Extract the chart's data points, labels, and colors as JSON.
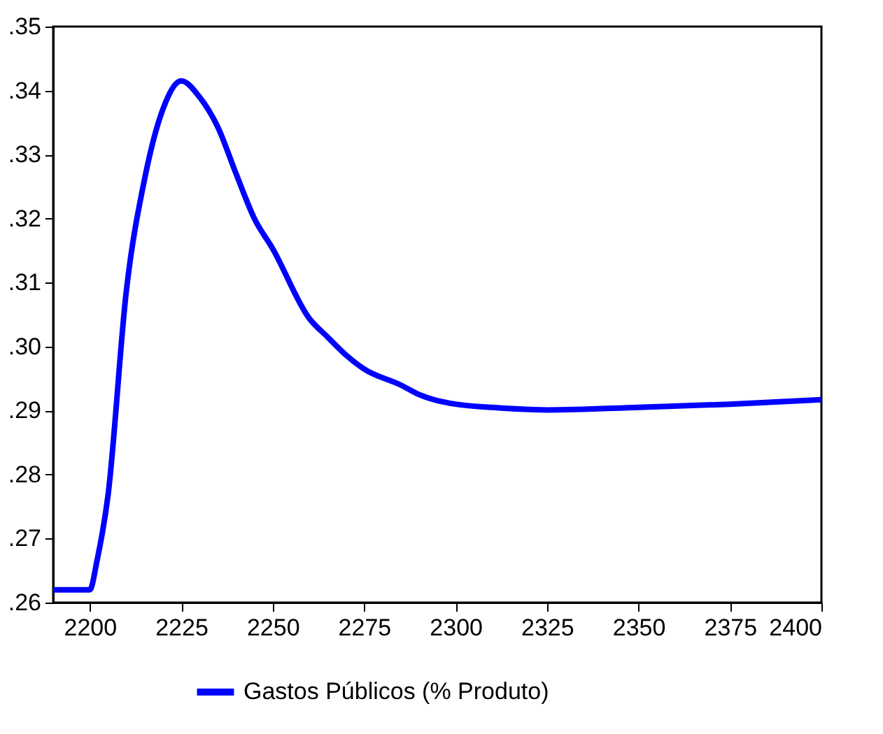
{
  "chart_data": {
    "type": "line",
    "xlim": [
      2190,
      2400
    ],
    "ylim": [
      0.26,
      0.35
    ],
    "xticks": [
      2200,
      2225,
      2250,
      2275,
      2300,
      2325,
      2350,
      2375,
      2400
    ],
    "yticks": [
      {
        "value": 0.26,
        "label": ".26"
      },
      {
        "value": 0.27,
        "label": ".27"
      },
      {
        "value": 0.28,
        "label": ".28"
      },
      {
        "value": 0.29,
        "label": ".29"
      },
      {
        "value": 0.3,
        "label": ".30"
      },
      {
        "value": 0.31,
        "label": ".31"
      },
      {
        "value": 0.32,
        "label": ".32"
      },
      {
        "value": 0.33,
        "label": ".33"
      },
      {
        "value": 0.34,
        "label": ".34"
      },
      {
        "value": 0.35,
        "label": ".35"
      }
    ],
    "x": [
      2190,
      2195,
      2200,
      2202,
      2205,
      2210,
      2215,
      2220,
      2225,
      2230,
      2235,
      2240,
      2245,
      2250,
      2260,
      2265,
      2270,
      2275,
      2285,
      2290,
      2300,
      2310,
      2325,
      2350,
      2375,
      2400
    ],
    "series": [
      {
        "name": "Gastos Públicos (% Produto)",
        "color": "#0000ff",
        "values": [
          0.262,
          0.262,
          0.262,
          0.2666,
          0.2768,
          0.3087,
          0.3262,
          0.3371,
          0.3415,
          0.339,
          0.3343,
          0.327,
          0.32,
          0.3153,
          0.3044,
          0.3015,
          0.2987,
          0.2965,
          0.294,
          0.2925,
          0.291,
          0.2905,
          0.2901,
          0.2905,
          0.291,
          0.2917
        ]
      }
    ],
    "grid": false,
    "legend": "bottom",
    "marker": "none",
    "line_style": "solid"
  }
}
